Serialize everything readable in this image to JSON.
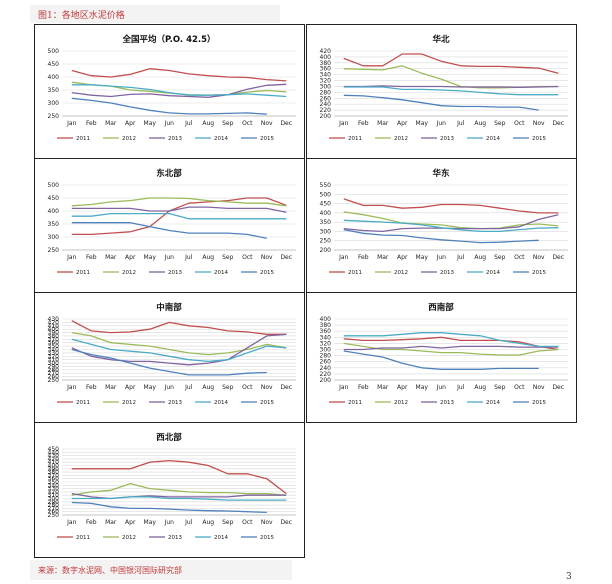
{
  "figure_title": "图1：各地区水泥价格",
  "source": "来源：数字水泥网、中国银河国际研究部",
  "page_number": "3",
  "months": [
    "Jan",
    "Feb",
    "Mar",
    "Apr",
    "May",
    "Jun",
    "Jul",
    "Aug",
    "Sep",
    "Oct",
    "Nov",
    "Dec"
  ],
  "series_meta": [
    {
      "name": "2011",
      "color": "#c0504d"
    },
    {
      "name": "2012",
      "color": "#9bbb59"
    },
    {
      "name": "2013",
      "color": "#8064a2"
    },
    {
      "name": "2014",
      "color": "#4bacc6"
    },
    {
      "name": "2015",
      "color": "#4f81bd"
    }
  ],
  "chart_data": [
    {
      "type": "line",
      "title": "全国平均（P.O. 42.5）",
      "ylim": [
        250,
        500
      ],
      "yticks": [
        250,
        300,
        350,
        400,
        450,
        500
      ],
      "series": [
        {
          "name": "2011",
          "values": [
            425,
            405,
            400,
            410,
            432,
            425,
            412,
            405,
            400,
            398,
            390,
            385
          ]
        },
        {
          "name": "2012",
          "values": [
            380,
            370,
            365,
            350,
            345,
            338,
            332,
            330,
            332,
            342,
            348,
            343
          ]
        },
        {
          "name": "2013",
          "values": [
            340,
            330,
            325,
            333,
            335,
            328,
            325,
            322,
            332,
            353,
            368,
            372
          ]
        },
        {
          "name": "2014",
          "values": [
            370,
            370,
            365,
            360,
            352,
            340,
            330,
            330,
            332,
            335,
            330,
            325
          ]
        },
        {
          "name": "2015",
          "values": [
            318,
            310,
            300,
            285,
            272,
            262,
            258,
            258,
            260,
            262,
            257
          ]
        }
      ]
    },
    {
      "type": "line",
      "title": "华北",
      "ylim": [
        200,
        420
      ],
      "yticks": [
        200,
        220,
        240,
        260,
        280,
        300,
        320,
        340,
        360,
        380,
        400,
        420
      ],
      "series": [
        {
          "name": "2011",
          "values": [
            395,
            370,
            370,
            410,
            410,
            385,
            370,
            368,
            368,
            365,
            362,
            345
          ]
        },
        {
          "name": "2012",
          "values": [
            360,
            358,
            356,
            370,
            345,
            325,
            300,
            295,
            295,
            297,
            300,
            300
          ]
        },
        {
          "name": "2013",
          "values": [
            300,
            300,
            302,
            300,
            300,
            300,
            298,
            298,
            298,
            297,
            298,
            300
          ]
        },
        {
          "name": "2014",
          "values": [
            298,
            298,
            298,
            290,
            290,
            288,
            285,
            280,
            275,
            272,
            272,
            272
          ]
        },
        {
          "name": "2015",
          "values": [
            270,
            268,
            262,
            255,
            245,
            235,
            232,
            232,
            230,
            230,
            220
          ]
        }
      ]
    },
    {
      "type": "line",
      "title": "东北部",
      "ylim": [
        250,
        500
      ],
      "yticks": [
        250,
        300,
        350,
        400,
        450,
        500
      ],
      "series": [
        {
          "name": "2011",
          "values": [
            310,
            310,
            315,
            320,
            340,
            400,
            430,
            435,
            440,
            450,
            450,
            422
          ]
        },
        {
          "name": "2012",
          "values": [
            420,
            425,
            435,
            440,
            450,
            450,
            448,
            440,
            435,
            430,
            430,
            420
          ]
        },
        {
          "name": "2013",
          "values": [
            410,
            410,
            410,
            410,
            400,
            400,
            415,
            415,
            410,
            410,
            410,
            395
          ]
        },
        {
          "name": "2014",
          "values": [
            380,
            380,
            390,
            390,
            390,
            390,
            370,
            370,
            370,
            370,
            370,
            370
          ]
        },
        {
          "name": "2015",
          "values": [
            355,
            355,
            355,
            355,
            340,
            325,
            315,
            315,
            315,
            310,
            295
          ]
        }
      ]
    },
    {
      "type": "line",
      "title": "华东",
      "ylim": [
        200,
        550
      ],
      "yticks": [
        200,
        250,
        300,
        350,
        400,
        450,
        500,
        550
      ],
      "series": [
        {
          "name": "2011",
          "values": [
            475,
            440,
            440,
            425,
            430,
            445,
            445,
            440,
            425,
            410,
            400,
            400
          ]
        },
        {
          "name": "2012",
          "values": [
            405,
            390,
            370,
            345,
            340,
            335,
            320,
            315,
            318,
            335,
            340,
            330
          ]
        },
        {
          "name": "2013",
          "values": [
            315,
            305,
            300,
            315,
            318,
            318,
            315,
            315,
            315,
            325,
            365,
            390
          ]
        },
        {
          "name": "2014",
          "values": [
            360,
            355,
            350,
            345,
            335,
            320,
            308,
            300,
            300,
            310,
            318,
            320
          ]
        },
        {
          "name": "2015",
          "values": [
            310,
            290,
            280,
            278,
            265,
            255,
            248,
            240,
            242,
            248,
            252
          ]
        }
      ]
    },
    {
      "type": "line",
      "title": "中南部",
      "ylim": [
        250,
        430
      ],
      "yticks": [
        250,
        260,
        270,
        280,
        290,
        300,
        310,
        320,
        330,
        340,
        350,
        360,
        370,
        380,
        390,
        400,
        410,
        420,
        430
      ],
      "series": [
        {
          "name": "2011",
          "values": [
            425,
            395,
            390,
            392,
            400,
            420,
            410,
            405,
            395,
            392,
            385,
            385
          ]
        },
        {
          "name": "2012",
          "values": [
            390,
            380,
            360,
            355,
            350,
            340,
            330,
            325,
            330,
            340,
            355,
            345
          ]
        },
        {
          "name": "2013",
          "values": [
            345,
            320,
            310,
            305,
            305,
            300,
            295,
            300,
            310,
            345,
            380,
            385
          ]
        },
        {
          "name": "2014",
          "values": [
            370,
            355,
            340,
            335,
            330,
            320,
            310,
            305,
            310,
            330,
            350,
            345
          ]
        },
        {
          "name": "2015",
          "values": [
            340,
            325,
            315,
            300,
            285,
            275,
            265,
            265,
            265,
            270,
            272
          ]
        }
      ]
    },
    {
      "type": "line",
      "title": "西南部",
      "ylim": [
        200,
        400
      ],
      "yticks": [
        200,
        220,
        240,
        260,
        280,
        300,
        320,
        340,
        360,
        380,
        400
      ],
      "series": [
        {
          "name": "2011",
          "values": [
            335,
            330,
            330,
            332,
            335,
            340,
            330,
            330,
            330,
            325,
            310,
            300
          ]
        },
        {
          "name": "2012",
          "values": [
            320,
            310,
            300,
            300,
            295,
            290,
            290,
            285,
            282,
            282,
            295,
            300
          ]
        },
        {
          "name": "2013",
          "values": [
            300,
            300,
            305,
            305,
            310,
            305,
            310,
            310,
            310,
            308,
            308,
            308
          ]
        },
        {
          "name": "2014",
          "values": [
            345,
            345,
            345,
            350,
            355,
            355,
            350,
            345,
            330,
            320,
            310,
            310
          ]
        },
        {
          "name": "2015",
          "values": [
            295,
            285,
            275,
            255,
            240,
            235,
            235,
            235,
            238,
            238,
            238
          ]
        }
      ]
    },
    {
      "type": "line",
      "title": "西北部",
      "ylim": [
        250,
        450
      ],
      "yticks": [
        250,
        260,
        270,
        280,
        290,
        300,
        310,
        320,
        330,
        340,
        350,
        360,
        370,
        380,
        390,
        400,
        410,
        420,
        430,
        440,
        450
      ],
      "series": [
        {
          "name": "2011",
          "values": [
            390,
            390,
            390,
            390,
            410,
            415,
            410,
            400,
            375,
            375,
            360,
            315
          ]
        },
        {
          "name": "2012",
          "values": [
            310,
            320,
            325,
            345,
            330,
            325,
            320,
            318,
            318,
            315,
            315,
            310
          ]
        },
        {
          "name": "2013",
          "values": [
            315,
            305,
            300,
            305,
            308,
            305,
            305,
            305,
            305,
            310,
            310,
            310
          ]
        },
        {
          "name": "2014",
          "values": [
            300,
            300,
            300,
            305,
            305,
            300,
            300,
            298,
            295,
            295,
            295,
            295
          ]
        },
        {
          "name": "2015",
          "values": [
            288,
            285,
            275,
            270,
            270,
            268,
            265,
            263,
            262,
            260,
            258
          ]
        }
      ]
    }
  ]
}
